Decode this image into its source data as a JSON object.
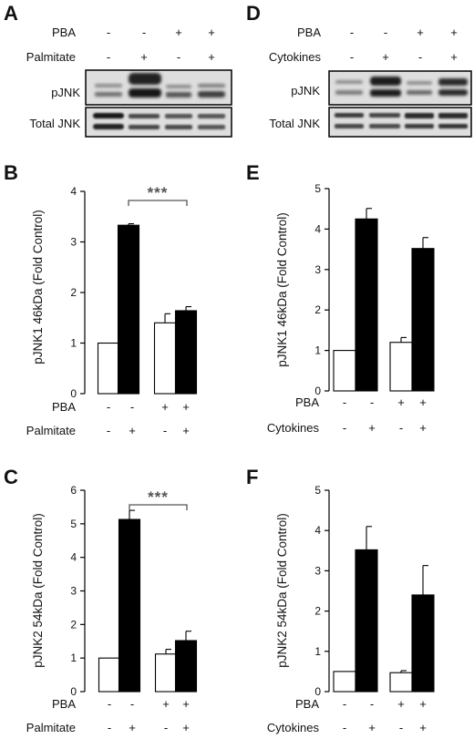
{
  "panels": {
    "A": "A",
    "B": "B",
    "C": "C",
    "D": "D",
    "E": "E",
    "F": "F"
  },
  "blots": [
    {
      "treatment_rows": [
        {
          "label": "PBA",
          "signs": [
            "-",
            "-",
            "+",
            "+"
          ]
        },
        {
          "label": "Palmitate",
          "signs": [
            "-",
            "+",
            "-",
            "+"
          ]
        }
      ],
      "blot_labels": [
        "pJNK",
        "Total JNK"
      ]
    },
    {
      "treatment_rows": [
        {
          "label": "PBA",
          "signs": [
            "-",
            "-",
            "+",
            "+"
          ]
        },
        {
          "label": "Cytokines",
          "signs": [
            "-",
            "+",
            "-",
            "+"
          ]
        }
      ],
      "blot_labels": [
        "pJNK",
        "Total JNK"
      ]
    }
  ],
  "colors": {
    "bar_control": "#ffffff",
    "bar_treated": "#000000",
    "axis": "#000000",
    "significance": "#555555"
  },
  "chart_data": [
    {
      "panel": "B",
      "type": "bar",
      "ylabel": "pJNK1 46kDa (Fold Control)",
      "ylim": [
        0,
        4
      ],
      "yticks": [
        "0",
        "1",
        "2",
        "3",
        "4"
      ],
      "values": [
        1.0,
        3.33,
        1.4,
        1.64
      ],
      "errors": [
        0,
        0.03,
        0.18,
        0.08
      ],
      "fills": [
        "white",
        "black",
        "white",
        "black"
      ],
      "treatments": [
        {
          "label": "PBA",
          "signs": [
            "-",
            "-",
            "+",
            "+"
          ]
        },
        {
          "label": "Palmitate",
          "signs": [
            "-",
            "+",
            "-",
            "+"
          ]
        }
      ],
      "significance": {
        "from": 1,
        "to": 3,
        "label": "***"
      }
    },
    {
      "panel": "C",
      "type": "bar",
      "ylabel": "pJNK2 54kDa (Fold Control)",
      "ylim": [
        0,
        6
      ],
      "yticks": [
        "0",
        "1",
        "2",
        "3",
        "4",
        "5",
        "6"
      ],
      "values": [
        1.0,
        5.13,
        1.12,
        1.52
      ],
      "errors": [
        0,
        0.27,
        0.14,
        0.28
      ],
      "fills": [
        "white",
        "black",
        "white",
        "black"
      ],
      "treatments": [
        {
          "label": "PBA",
          "signs": [
            "-",
            "-",
            "+",
            "+"
          ]
        },
        {
          "label": "Palmitate",
          "signs": [
            "-",
            "+",
            "-",
            "+"
          ]
        }
      ],
      "significance": {
        "from": 1,
        "to": 3,
        "label": "***"
      }
    },
    {
      "panel": "E",
      "type": "bar",
      "ylabel": "pJNK1 46kDa (Fold Control)",
      "ylim": [
        0,
        5
      ],
      "yticks": [
        "0",
        "1",
        "2",
        "3",
        "4",
        "5"
      ],
      "values": [
        1.0,
        4.25,
        1.2,
        3.52
      ],
      "errors": [
        0,
        0.26,
        0.12,
        0.27
      ],
      "fills": [
        "white",
        "black",
        "white",
        "black"
      ],
      "treatments": [
        {
          "label": "PBA",
          "signs": [
            "-",
            "-",
            "+",
            "+"
          ]
        },
        {
          "label": "Cytokines",
          "signs": [
            "-",
            "+",
            "-",
            "+"
          ]
        }
      ]
    },
    {
      "panel": "F",
      "type": "bar",
      "ylabel": "pJNK2 54kDa (Fold Control)",
      "ylim": [
        0,
        5
      ],
      "yticks": [
        "0",
        "1",
        "2",
        "3",
        "4",
        "5"
      ],
      "values": [
        0.5,
        3.52,
        0.47,
        2.4
      ],
      "errors": [
        0,
        0.58,
        0.05,
        0.73
      ],
      "fills": [
        "white",
        "black",
        "white",
        "black"
      ],
      "treatments": [
        {
          "label": "PBA",
          "signs": [
            "-",
            "-",
            "+",
            "+"
          ]
        },
        {
          "label": "Cytokines",
          "signs": [
            "-",
            "+",
            "-",
            "+"
          ]
        }
      ]
    }
  ]
}
